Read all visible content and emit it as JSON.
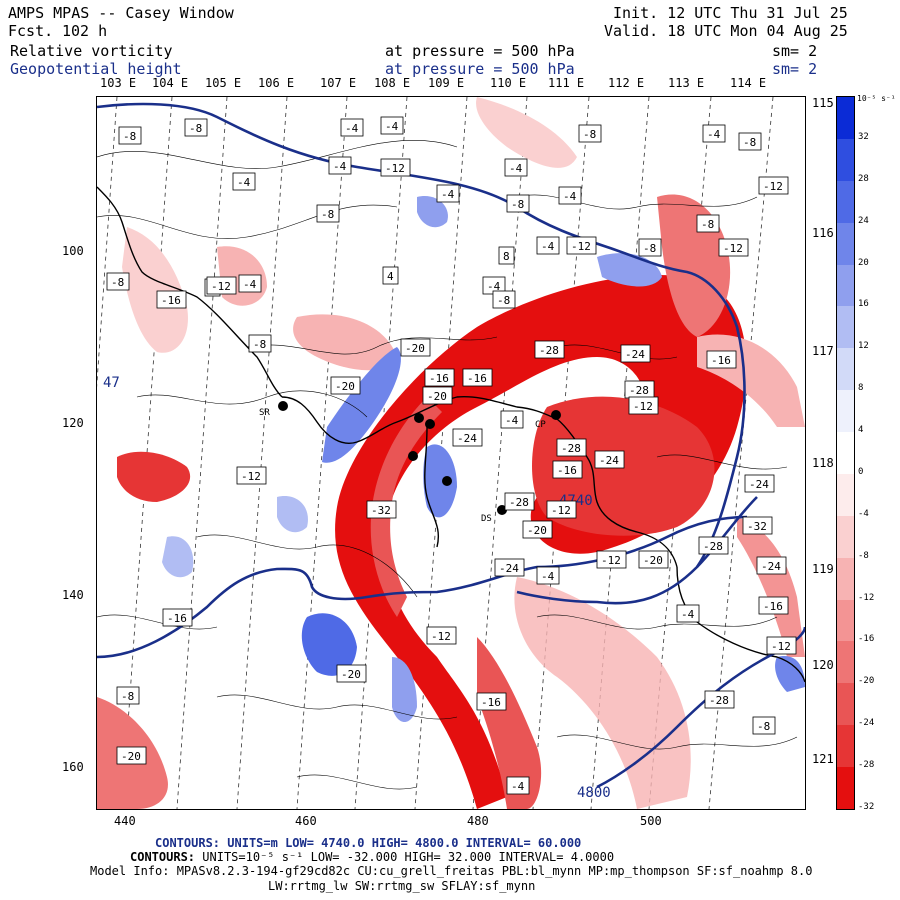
{
  "header": {
    "title": "AMPS MPAS -- Casey Window",
    "forecast_label": "Fcst.",
    "forecast_value": "102 h",
    "init": "Init. 12 UTC Thu 31 Jul 25",
    "valid": "Valid. 18 UTC Mon 04 Aug 25",
    "field1_name": "Relative vorticity",
    "field1_pressure": "at pressure =  500 hPa",
    "field1_sm": "sm= 2",
    "field2_name": "Geopotential height",
    "field2_pressure": "at pressure =  500 hPa",
    "field2_sm": "sm= 2"
  },
  "axes": {
    "top_lon_labels": [
      "103 E",
      "104 E",
      "105 E",
      "106 E",
      "107 E",
      "108 E",
      "109 E",
      "110 E",
      "111 E",
      "112 E",
      "113 E",
      "114 E"
    ],
    "right_lon_labels": [
      "115 E",
      "116 E",
      "117 E",
      "118 E",
      "119 E",
      "120 E",
      "121 E"
    ],
    "x_ticks": [
      "440",
      "460",
      "480",
      "500"
    ],
    "y_ticks": [
      "100",
      "120",
      "140",
      "160"
    ],
    "side_lat_label": "47"
  },
  "colorbar": {
    "unit": "10⁻⁵ s⁻¹",
    "ticks": [
      "32",
      "28",
      "24",
      "20",
      "16",
      "12",
      "8",
      "4",
      "0",
      "-4",
      "-8",
      "-12",
      "-16",
      "-20",
      "-24",
      "-28",
      "-32"
    ],
    "colors": [
      "#0b2bd6",
      "#2f4ee0",
      "#4f6ae6",
      "#6f85ea",
      "#8f9fee",
      "#b1bdf3",
      "#d2daf8",
      "#eef1fc",
      "#ffffff",
      "#fdecec",
      "#fad0d0",
      "#f7b3b3",
      "#f39494",
      "#ee7575",
      "#e95555",
      "#e63535",
      "#e40f0f"
    ]
  },
  "map": {
    "stations": [
      "SR",
      "CP",
      "DS"
    ],
    "height_labels": [
      "4740",
      "4800"
    ],
    "vorticity_labels": [
      "-8",
      "-8",
      "-4",
      "-4",
      "-4",
      "-8",
      "-12",
      "-4",
      "-8",
      "-4",
      "-8",
      "-4",
      "-4",
      "-8",
      "-4",
      "-12",
      "-8",
      "-4",
      "-12",
      "-8",
      "4",
      "4",
      "8",
      "-12",
      "-8",
      "-16",
      "-4",
      "-4",
      "-8",
      "-12",
      "-20",
      "-16",
      "-24",
      "-28",
      "-16",
      "-8",
      "-20",
      "-16",
      "-24",
      "-28",
      "-4",
      "-28",
      "-20",
      "-24",
      "-32",
      "-12",
      "-28",
      "-12",
      "-20",
      "-16",
      "-20",
      "-24",
      "-12",
      "-16",
      "-32",
      "-28",
      "-24",
      "-20",
      "-12",
      "-16",
      "-4",
      "-4",
      "-8",
      "-12",
      "-16",
      "-20",
      "-24",
      "-28",
      "-12",
      "-8",
      "-4"
    ]
  },
  "footer": {
    "line1_prefix": "CONTOURS:",
    "line1": "UNITS=m  LOW=  4740.0       HIGH=  4800.0       INTERVAL=   60.000",
    "line2_prefix": "CONTOURS:",
    "line2": "UNITS=10⁻⁵ s⁻¹  LOW= -32.000       HIGH=  32.000       INTERVAL=   4.0000",
    "model_info": "Model Info: MPASv8.2.3-194-gf29cd82c CU:cu_grell_freitas PBL:bl_mynn MP:mp_thompson SF:sf_noahmp 8.0",
    "model_info2": "LW:rrtmg_lw SW:rrtmg_sw SFLAY:sf_mynn"
  }
}
